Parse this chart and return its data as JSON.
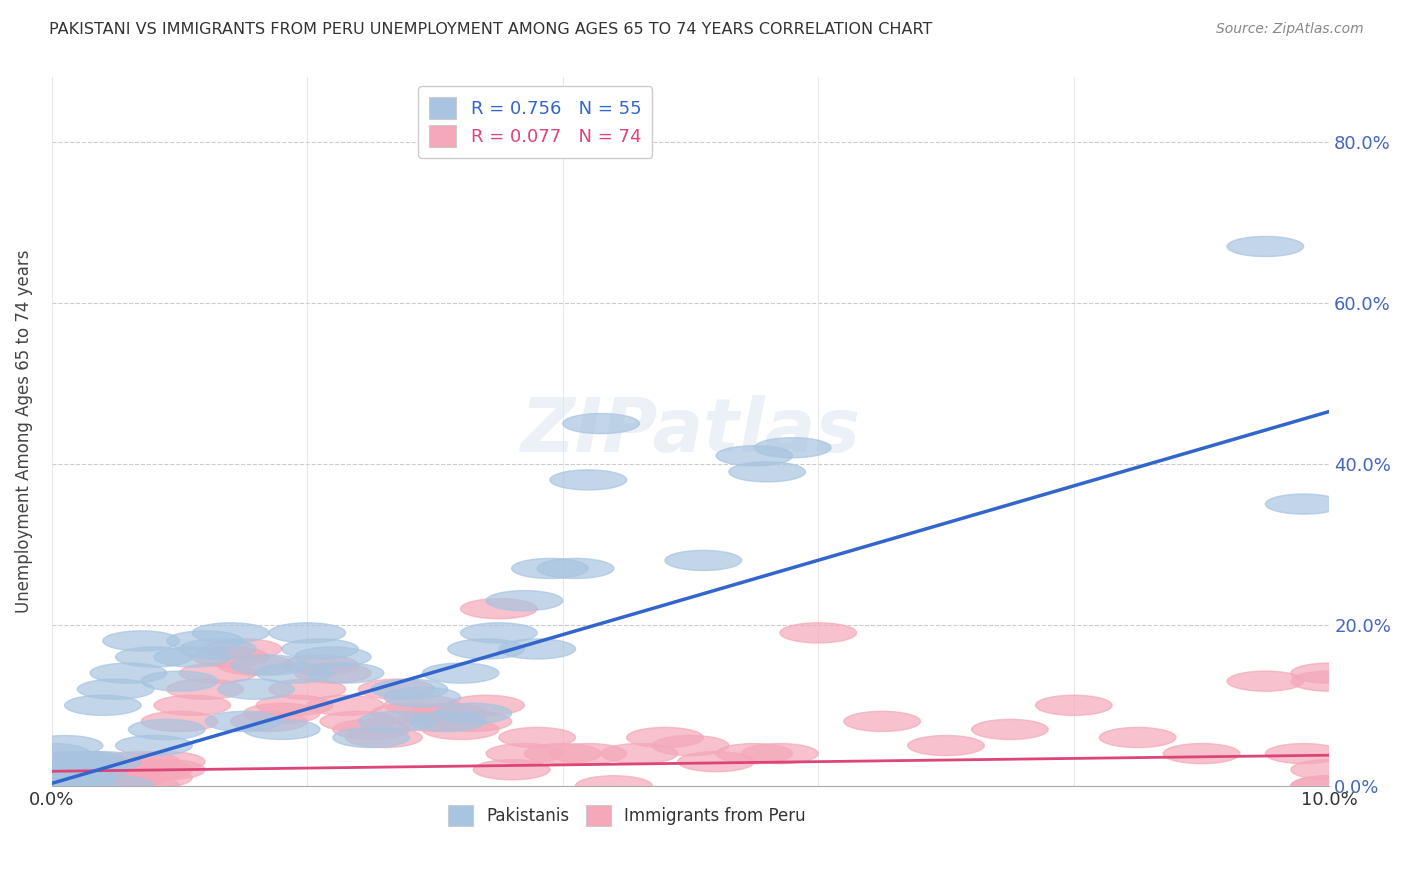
{
  "title": "PAKISTANI VS IMMIGRANTS FROM PERU UNEMPLOYMENT AMONG AGES 65 TO 74 YEARS CORRELATION CHART",
  "source": "Source: ZipAtlas.com",
  "ylabel": "Unemployment Among Ages 65 to 74 years",
  "xlim": [
    0.0,
    0.1
  ],
  "ylim": [
    0.0,
    0.88
  ],
  "xticks_show": [
    0.0,
    0.1
  ],
  "xticks_minor": [
    0.02,
    0.04,
    0.06,
    0.08
  ],
  "yticks": [
    0.0,
    0.2,
    0.4,
    0.6,
    0.8
  ],
  "blue_R": 0.756,
  "blue_N": 55,
  "pink_R": 0.077,
  "pink_N": 74,
  "blue_color": "#a8c4e0",
  "pink_color": "#f4a8b8",
  "blue_line_color": "#3366cc",
  "pink_line_color": "#dd4477",
  "yticklabel_color": "#4466bb",
  "legend_label_blue": "Pakistanis",
  "legend_label_pink": "Immigrants from Peru",
  "blue_line_x": [
    0.0,
    0.1
  ],
  "blue_line_y": [
    0.003,
    0.465
  ],
  "pink_line_x": [
    0.0,
    0.1
  ],
  "pink_line_y": [
    0.018,
    0.038
  ],
  "blue_scatter_x": [
    0.0,
    0.0,
    0.0,
    0.001,
    0.001,
    0.001,
    0.002,
    0.002,
    0.002,
    0.003,
    0.003,
    0.004,
    0.004,
    0.005,
    0.005,
    0.006,
    0.007,
    0.008,
    0.008,
    0.009,
    0.01,
    0.011,
    0.012,
    0.013,
    0.014,
    0.015,
    0.016,
    0.017,
    0.018,
    0.019,
    0.02,
    0.021,
    0.022,
    0.023,
    0.025,
    0.027,
    0.028,
    0.029,
    0.031,
    0.032,
    0.033,
    0.034,
    0.035,
    0.037,
    0.038,
    0.039,
    0.041,
    0.042,
    0.043,
    0.051,
    0.055,
    0.056,
    0.058,
    0.095,
    0.098
  ],
  "blue_scatter_y": [
    0.02,
    0.04,
    0.01,
    0.02,
    0.0,
    0.05,
    0.0,
    0.03,
    0.01,
    0.02,
    0.03,
    0.1,
    0.03,
    0.12,
    0.0,
    0.14,
    0.18,
    0.05,
    0.16,
    0.07,
    0.13,
    0.16,
    0.18,
    0.17,
    0.19,
    0.08,
    0.12,
    0.15,
    0.07,
    0.14,
    0.19,
    0.17,
    0.16,
    0.14,
    0.06,
    0.08,
    0.12,
    0.11,
    0.08,
    0.14,
    0.09,
    0.17,
    0.19,
    0.23,
    0.17,
    0.27,
    0.27,
    0.38,
    0.45,
    0.28,
    0.41,
    0.39,
    0.42,
    0.67,
    0.35
  ],
  "pink_scatter_x": [
    0.0,
    0.0,
    0.0,
    0.001,
    0.001,
    0.001,
    0.002,
    0.002,
    0.003,
    0.003,
    0.004,
    0.004,
    0.005,
    0.005,
    0.006,
    0.006,
    0.007,
    0.007,
    0.008,
    0.008,
    0.009,
    0.009,
    0.01,
    0.011,
    0.012,
    0.013,
    0.014,
    0.015,
    0.016,
    0.017,
    0.018,
    0.019,
    0.02,
    0.021,
    0.022,
    0.023,
    0.024,
    0.025,
    0.026,
    0.027,
    0.028,
    0.029,
    0.03,
    0.031,
    0.032,
    0.033,
    0.034,
    0.035,
    0.036,
    0.037,
    0.038,
    0.04,
    0.042,
    0.044,
    0.046,
    0.048,
    0.05,
    0.052,
    0.055,
    0.057,
    0.06,
    0.065,
    0.07,
    0.075,
    0.08,
    0.085,
    0.09,
    0.095,
    0.098,
    0.1,
    0.1,
    0.1,
    0.1,
    0.1
  ],
  "pink_scatter_y": [
    0.02,
    0.01,
    0.0,
    0.03,
    0.01,
    0.0,
    0.02,
    0.0,
    0.01,
    0.03,
    0.01,
    0.0,
    0.02,
    0.01,
    0.02,
    0.01,
    0.03,
    0.0,
    0.02,
    0.01,
    0.03,
    0.02,
    0.08,
    0.1,
    0.12,
    0.14,
    0.16,
    0.17,
    0.15,
    0.08,
    0.09,
    0.1,
    0.12,
    0.15,
    0.14,
    0.1,
    0.08,
    0.07,
    0.06,
    0.12,
    0.09,
    0.1,
    0.08,
    0.09,
    0.07,
    0.08,
    0.1,
    0.22,
    0.02,
    0.04,
    0.06,
    0.04,
    0.04,
    0.0,
    0.04,
    0.06,
    0.05,
    0.03,
    0.04,
    0.04,
    0.19,
    0.08,
    0.05,
    0.07,
    0.1,
    0.06,
    0.04,
    0.13,
    0.04,
    0.13,
    0.14,
    0.02,
    0.0,
    0.0
  ]
}
